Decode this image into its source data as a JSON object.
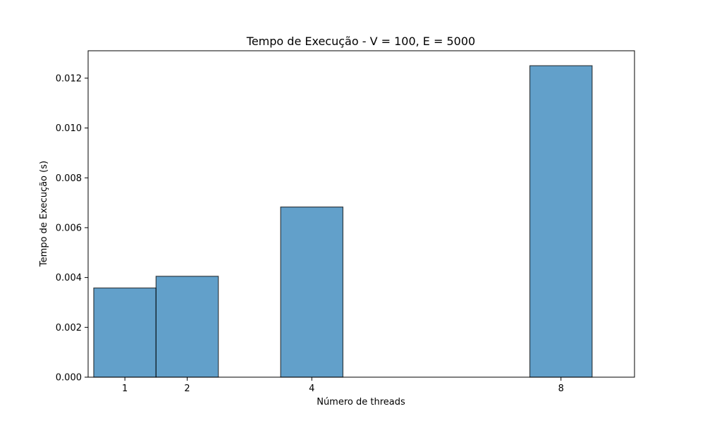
{
  "chart_data": {
    "type": "bar",
    "title": "Tempo de Execução - V = 100, E = 5000",
    "xlabel": "Número de threads",
    "ylabel": "Tempo de Execução (s)",
    "x": [
      1,
      2,
      4,
      8
    ],
    "x_tick_labels": [
      "1",
      "2",
      "4",
      "8"
    ],
    "values": [
      0.00358,
      0.00405,
      0.00683,
      0.0125
    ],
    "xlim": [
      0.41,
      9.18
    ],
    "ylim": [
      0,
      0.0131
    ],
    "y_ticks": [
      0,
      0.002,
      0.004,
      0.006,
      0.008,
      0.01,
      0.012
    ],
    "y_tick_labels": [
      "0.000",
      "0.002",
      "0.004",
      "0.006",
      "0.008",
      "0.010",
      "0.012"
    ],
    "bar_width": 1,
    "bar_color": "#1f77b4",
    "bar_opacity": 0.7,
    "bar_edge_color": "#000000",
    "grid": false,
    "legend": "none"
  }
}
